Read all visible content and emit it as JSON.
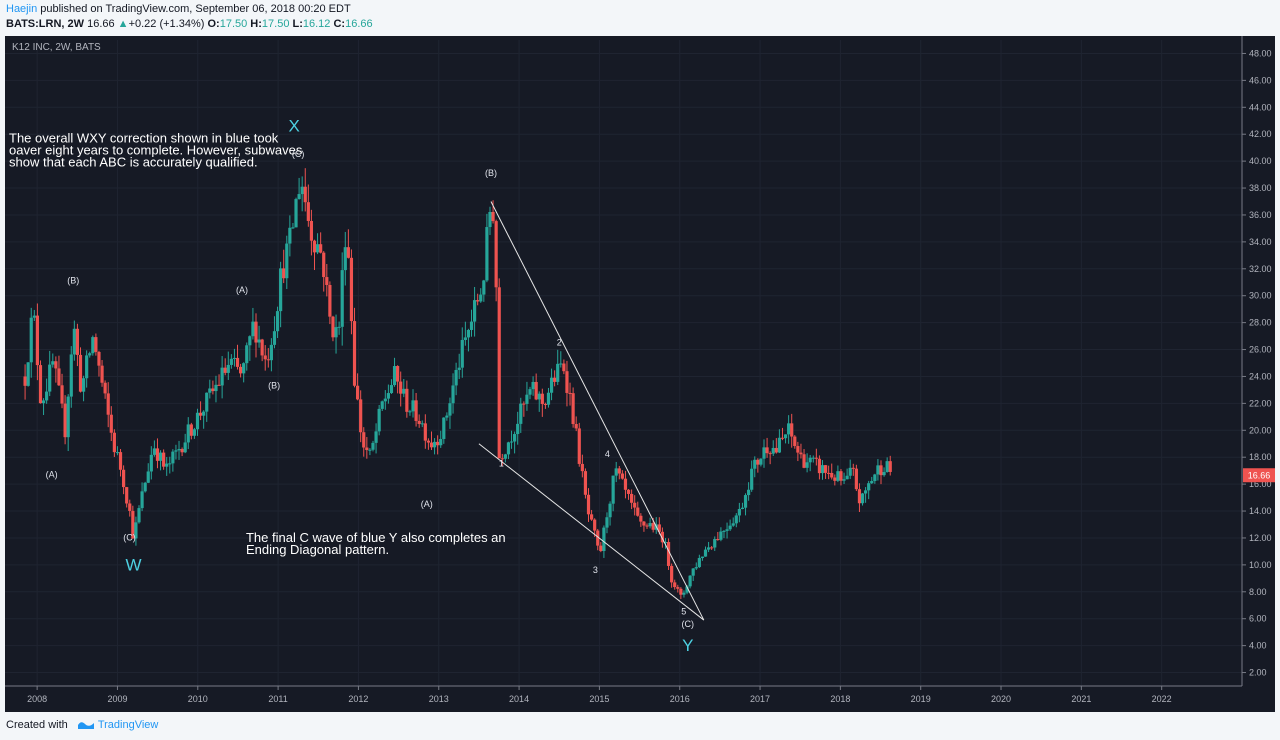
{
  "header": {
    "author": "Haejin",
    "published_text": " published on TradingView.com, September 06, 2018 00:20 EDT",
    "symbol": "BATS:LRN, 2W",
    "last": "16.66",
    "change": "+0.22 (+1.34%)",
    "open_label": "O:",
    "open": "17.50",
    "high_label": "H:",
    "high": "17.50",
    "low_label": "L:",
    "low": "16.12",
    "close_label": "C:",
    "close": "16.66"
  },
  "footer": {
    "created_with": "Created with",
    "brand": "TradingView"
  },
  "colors": {
    "up": "#26a69a",
    "down": "#ef5350",
    "background": "#161a25",
    "wave_label": "#4dd0e1",
    "text": "#d1d4dc"
  },
  "chart_data": {
    "type": "candlestick",
    "title": "K12 INC, 2W, BATS",
    "ylim": [
      1,
      49
    ],
    "y_ticks": [
      "2.00",
      "4.00",
      "6.00",
      "8.00",
      "10.00",
      "12.00",
      "14.00",
      "16.00",
      "18.00",
      "20.00",
      "22.00",
      "24.00",
      "26.00",
      "28.00",
      "30.00",
      "32.00",
      "34.00",
      "36.00",
      "38.00",
      "40.00",
      "42.00",
      "44.00",
      "46.00",
      "48.00"
    ],
    "xlim": [
      2007.6,
      2023.0
    ],
    "x_ticks": [
      "2008",
      "2009",
      "2010",
      "2011",
      "2012",
      "2013",
      "2014",
      "2015",
      "2016",
      "2017",
      "2018",
      "2019",
      "2020",
      "2021",
      "2022"
    ],
    "last_price_label": "16.66",
    "price_path": [
      [
        2007.85,
        24
      ],
      [
        2007.95,
        29
      ],
      [
        2008.05,
        22
      ],
      [
        2008.2,
        25
      ],
      [
        2008.35,
        20
      ],
      [
        2008.45,
        28
      ],
      [
        2008.55,
        23
      ],
      [
        2008.7,
        27
      ],
      [
        2008.85,
        22
      ],
      [
        2008.95,
        19
      ],
      [
        2009.05,
        17
      ],
      [
        2009.15,
        14
      ],
      [
        2009.2,
        12
      ],
      [
        2009.3,
        15
      ],
      [
        2009.45,
        19
      ],
      [
        2009.6,
        17
      ],
      [
        2009.8,
        19
      ],
      [
        2010.0,
        21
      ],
      [
        2010.2,
        23
      ],
      [
        2010.4,
        25
      ],
      [
        2010.55,
        24
      ],
      [
        2010.7,
        28
      ],
      [
        2010.85,
        25
      ],
      [
        2010.95,
        28
      ],
      [
        2011.05,
        32
      ],
      [
        2011.15,
        34
      ],
      [
        2011.28,
        39
      ],
      [
        2011.4,
        35
      ],
      [
        2011.55,
        33
      ],
      [
        2011.65,
        28
      ],
      [
        2011.75,
        27
      ],
      [
        2011.85,
        36
      ],
      [
        2011.95,
        24
      ],
      [
        2012.05,
        19
      ],
      [
        2012.15,
        18
      ],
      [
        2012.3,
        22
      ],
      [
        2012.45,
        24
      ],
      [
        2012.6,
        22
      ],
      [
        2012.75,
        21
      ],
      [
        2012.9,
        19
      ],
      [
        2013.05,
        20
      ],
      [
        2013.25,
        25
      ],
      [
        2013.4,
        28
      ],
      [
        2013.55,
        31
      ],
      [
        2013.65,
        37
      ],
      [
        2013.7,
        36
      ],
      [
        2013.75,
        18
      ],
      [
        2013.85,
        19
      ],
      [
        2014.0,
        21
      ],
      [
        2014.15,
        23
      ],
      [
        2014.3,
        22
      ],
      [
        2014.45,
        24
      ],
      [
        2014.55,
        25
      ],
      [
        2014.65,
        22
      ],
      [
        2014.75,
        18
      ],
      [
        2014.85,
        14
      ],
      [
        2014.95,
        12
      ],
      [
        2015.0,
        10.5
      ],
      [
        2015.1,
        14
      ],
      [
        2015.2,
        17
      ],
      [
        2015.35,
        15
      ],
      [
        2015.5,
        13
      ],
      [
        2015.65,
        13
      ],
      [
        2015.8,
        12
      ],
      [
        2015.9,
        9
      ],
      [
        2016.02,
        7.5
      ],
      [
        2016.15,
        9.5
      ],
      [
        2016.3,
        11
      ],
      [
        2016.45,
        12
      ],
      [
        2016.6,
        13
      ],
      [
        2016.75,
        14
      ],
      [
        2016.9,
        17
      ],
      [
        2017.0,
        18
      ],
      [
        2017.1,
        19
      ],
      [
        2017.2,
        18.5
      ],
      [
        2017.35,
        20
      ],
      [
        2017.5,
        18
      ],
      [
        2017.65,
        17.5
      ],
      [
        2017.8,
        17
      ],
      [
        2017.95,
        16.5
      ],
      [
        2018.05,
        16
      ],
      [
        2018.15,
        17
      ],
      [
        2018.25,
        14.5
      ],
      [
        2018.35,
        16
      ],
      [
        2018.45,
        17
      ],
      [
        2018.55,
        17.5
      ],
      [
        2018.65,
        16.7
      ]
    ],
    "wave_labels": [
      {
        "text": "(B)",
        "x": 2008.45,
        "y": 30.9,
        "style": "minor"
      },
      {
        "text": "(A)",
        "x": 2008.18,
        "y": 16.5,
        "style": "minor"
      },
      {
        "text": "(C)",
        "x": 2009.15,
        "y": 11.8,
        "style": "minor"
      },
      {
        "text": "W",
        "x": 2009.2,
        "y": 9.6,
        "style": "major"
      },
      {
        "text": "(A)",
        "x": 2010.55,
        "y": 30.2,
        "style": "minor"
      },
      {
        "text": "(B)",
        "x": 2010.95,
        "y": 23.1,
        "style": "minor"
      },
      {
        "text": "(C)",
        "x": 2011.25,
        "y": 40.3,
        "style": "minor"
      },
      {
        "text": "X",
        "x": 2011.2,
        "y": 42.2,
        "style": "major"
      },
      {
        "text": "(B)",
        "x": 2013.65,
        "y": 38.9,
        "style": "minor"
      },
      {
        "text": "(A)",
        "x": 2012.85,
        "y": 14.3,
        "style": "minor"
      },
      {
        "text": "1",
        "x": 2013.78,
        "y": 17.3,
        "style": "minor"
      },
      {
        "text": "2",
        "x": 2014.5,
        "y": 26.3,
        "style": "minor"
      },
      {
        "text": "3",
        "x": 2014.95,
        "y": 9.4,
        "style": "minor"
      },
      {
        "text": "4",
        "x": 2015.1,
        "y": 18.0,
        "style": "minor"
      },
      {
        "text": "5",
        "x": 2016.05,
        "y": 6.3,
        "style": "minor"
      },
      {
        "text": "(C)",
        "x": 2016.1,
        "y": 5.4,
        "style": "minor"
      },
      {
        "text": "Y",
        "x": 2016.1,
        "y": 3.6,
        "style": "major"
      }
    ],
    "trendlines": [
      {
        "from": [
          2013.65,
          37
        ],
        "to": [
          2016.3,
          5.9
        ]
      },
      {
        "from": [
          2013.5,
          19
        ],
        "to": [
          2016.3,
          5.9
        ]
      }
    ],
    "annotations": [
      {
        "lines": [
          "The overall WXY correction shown in blue took",
          "oaver eight years to complete. However, subwaves",
          "show that each ABC is accurately qualified."
        ],
        "x": 2007.65,
        "y": 41.4
      },
      {
        "lines": [
          "The final C wave of blue Y also completes an",
          "Ending Diagonal pattern."
        ],
        "x": 2010.6,
        "y": 11.7
      }
    ]
  }
}
